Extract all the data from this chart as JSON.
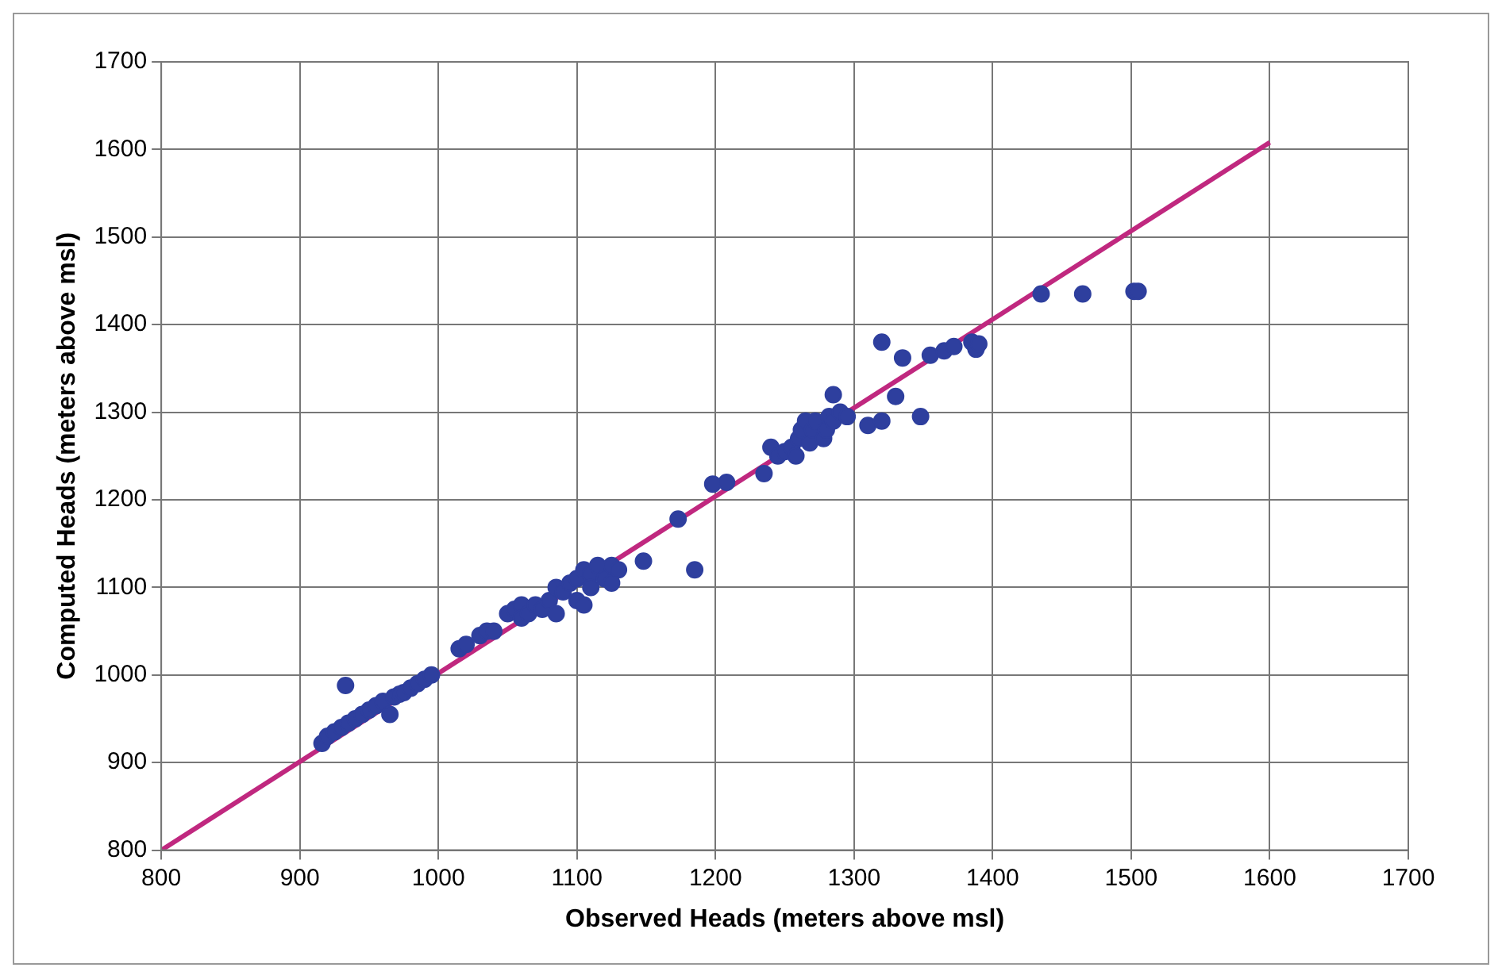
{
  "chart_data": {
    "type": "scatter",
    "xlabel": "Observed Heads (meters above msl)",
    "ylabel": "Computed Heads (meters above msl)",
    "xlim": [
      800,
      1700
    ],
    "xticks": [
      800,
      900,
      1000,
      1100,
      1200,
      1300,
      1400,
      1500,
      1600,
      1700
    ],
    "ylim": [
      800,
      1700
    ],
    "yticks": [
      800,
      900,
      1000,
      1100,
      1200,
      1300,
      1400,
      1500,
      1600,
      1700
    ],
    "grid": true,
    "legend": false,
    "series": [
      {
        "color": "#2e3f9e",
        "marker": "circle",
        "x": [
          916,
          920,
          925,
          930,
          933,
          935,
          940,
          945,
          950,
          955,
          960,
          965,
          968,
          972,
          975,
          980,
          985,
          990,
          995,
          1015,
          1020,
          1030,
          1035,
          1040,
          1050,
          1055,
          1060,
          1060,
          1065,
          1070,
          1075,
          1080,
          1085,
          1085,
          1090,
          1095,
          1100,
          1100,
          1105,
          1105,
          1110,
          1110,
          1115,
          1120,
          1125,
          1125,
          1130,
          1148,
          1173,
          1185,
          1198,
          1208,
          1235,
          1240,
          1245,
          1250,
          1255,
          1258,
          1260,
          1262,
          1265,
          1268,
          1270,
          1272,
          1278,
          1280,
          1282,
          1285,
          1285,
          1290,
          1295,
          1310,
          1320,
          1320,
          1330,
          1335,
          1348,
          1355,
          1365,
          1372,
          1385,
          1388,
          1390,
          1435,
          1465,
          1502,
          1505
        ],
        "values": [
          922,
          930,
          935,
          940,
          988,
          945,
          950,
          955,
          960,
          965,
          970,
          955,
          975,
          978,
          980,
          985,
          990,
          995,
          1000,
          1030,
          1035,
          1045,
          1050,
          1050,
          1070,
          1075,
          1080,
          1065,
          1070,
          1080,
          1075,
          1085,
          1070,
          1100,
          1095,
          1105,
          1110,
          1085,
          1080,
          1120,
          1115,
          1100,
          1125,
          1110,
          1105,
          1125,
          1120,
          1130,
          1178,
          1120,
          1218,
          1220,
          1230,
          1260,
          1250,
          1255,
          1260,
          1250,
          1270,
          1280,
          1290,
          1265,
          1280,
          1290,
          1270,
          1280,
          1295,
          1290,
          1320,
          1300,
          1295,
          1285,
          1380,
          1290,
          1318,
          1362,
          1295,
          1365,
          1370,
          1375,
          1380,
          1372,
          1378,
          1435,
          1435,
          1438,
          1438
        ]
      },
      {
        "type": "line",
        "color": "#c0287f",
        "marker": "none",
        "line_style": "solid",
        "x": [
          800,
          1600
        ],
        "values": [
          800,
          1608
        ]
      }
    ]
  }
}
